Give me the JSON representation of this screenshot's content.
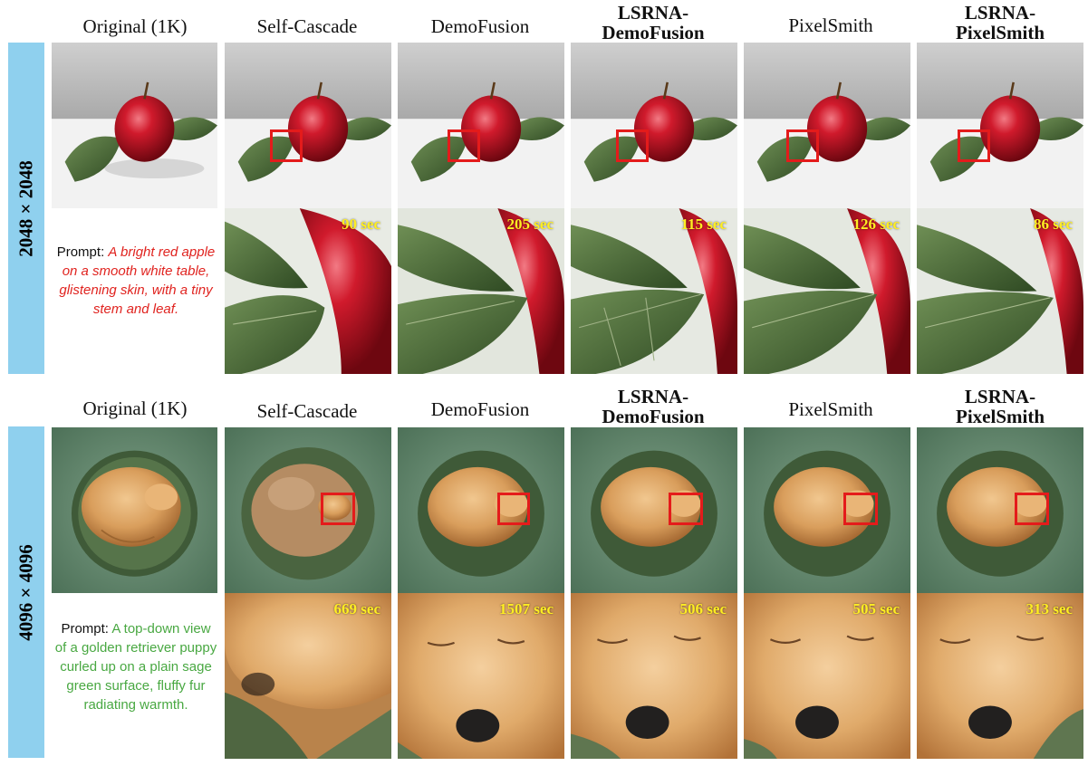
{
  "sections": [
    {
      "resolution": "2048 × 2048",
      "headers": [
        {
          "lines": [
            "Original (1K)"
          ],
          "bold": false
        },
        {
          "lines": [
            "Self-Cascade"
          ],
          "bold": false
        },
        {
          "lines": [
            "DemoFusion"
          ],
          "bold": false
        },
        {
          "lines": [
            "LSRNA-",
            "DemoFusion"
          ],
          "bold": true
        },
        {
          "lines": [
            "PixelSmith"
          ],
          "bold": false
        },
        {
          "lines": [
            "LSRNA-",
            "PixelSmith"
          ],
          "bold": true
        }
      ],
      "prompt_label": "Prompt: ",
      "prompt_text": "A bright red apple on a smooth white table, glistening skin, with a tiny stem and leaf.",
      "prompt_color": "#e0231f",
      "times": [
        "90 sec",
        "205 sec",
        "115 sec",
        "126 sec",
        "86 sec"
      ]
    },
    {
      "resolution": "4096 × 4096",
      "headers": [
        {
          "lines": [
            "Original (1K)"
          ],
          "bold": false
        },
        {
          "lines": [
            "Self-Cascade"
          ],
          "bold": false
        },
        {
          "lines": [
            "DemoFusion"
          ],
          "bold": false
        },
        {
          "lines": [
            "LSRNA-",
            "DemoFusion"
          ],
          "bold": true
        },
        {
          "lines": [
            "PixelSmith"
          ],
          "bold": false
        },
        {
          "lines": [
            "LSRNA-",
            "PixelSmith"
          ],
          "bold": true
        }
      ],
      "prompt_label": "Prompt: ",
      "prompt_text": "A top-down view of a golden retriever puppy curled up on a plain sage green surface, fluffy fur radiating warmth.",
      "prompt_color": "#49a842",
      "times": [
        "669 sec",
        "1507 sec",
        "506 sec",
        "505 sec",
        "313 sec"
      ]
    }
  ],
  "colors": {
    "label_bar": "#8fd0ee",
    "time_text": "#ffee22",
    "crop_box": "#e41b1b"
  }
}
